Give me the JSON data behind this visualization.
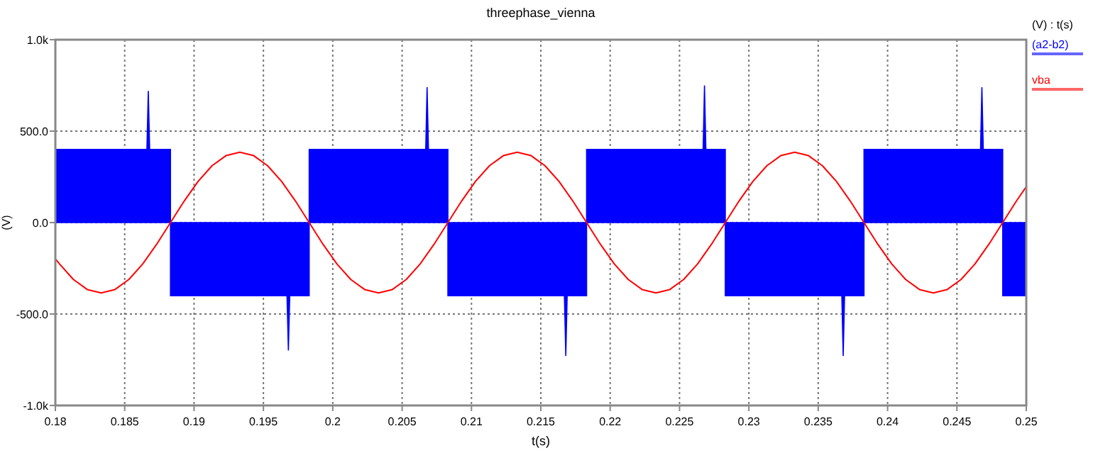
{
  "chart_data": {
    "type": "line",
    "title": "threephase_vienna",
    "xlabel": "t(s)",
    "ylabel": "(V)",
    "legend_title": "(V) : t(s)",
    "legend": "right",
    "grid": true,
    "xlim": [
      0.18,
      0.25
    ],
    "xticks": [
      0.18,
      0.185,
      0.19,
      0.195,
      0.2,
      0.205,
      0.21,
      0.215,
      0.22,
      0.225,
      0.23,
      0.235,
      0.24,
      0.245,
      0.25
    ],
    "ylim": [
      -1000,
      1000
    ],
    "yticks": [
      {
        "value": -1000,
        "label": "-1.0k"
      },
      {
        "value": -500,
        "label": "-500.0"
      },
      {
        "value": 0,
        "label": "0.0"
      },
      {
        "value": 500,
        "label": "500.0"
      },
      {
        "value": 1000,
        "label": "1.0k"
      }
    ],
    "series": [
      {
        "name": "(a2-b2)",
        "type": "area",
        "color": "#0000ff",
        "x": [
          0.18,
          0.1866,
          0.1867,
          0.1868,
          0.1883,
          0.1883,
          0.1967,
          0.1968,
          0.1969,
          0.1983,
          0.1983,
          0.2067,
          0.2068,
          0.2069,
          0.2083,
          0.2083,
          0.2167,
          0.2168,
          0.2169,
          0.2183,
          0.2183,
          0.2267,
          0.2268,
          0.2269,
          0.2283,
          0.2283,
          0.2367,
          0.2368,
          0.2369,
          0.2383,
          0.2383,
          0.2467,
          0.2468,
          0.2469,
          0.2483,
          0.2483,
          0.25
        ],
        "values": [
          400,
          400,
          720,
          400,
          400,
          -400,
          -400,
          -700,
          -400,
          -400,
          400,
          400,
          740,
          400,
          400,
          -400,
          -400,
          -730,
          -400,
          -400,
          400,
          400,
          750,
          400,
          400,
          -400,
          -400,
          -730,
          -400,
          -400,
          400,
          400,
          740,
          400,
          400,
          -400,
          -400
        ]
      },
      {
        "name": "vba",
        "color": "#ff0000",
        "x": [
          0.18,
          0.1803,
          0.1813,
          0.1823,
          0.1833,
          0.1843,
          0.1853,
          0.1863,
          0.1873,
          0.1883,
          0.1893,
          0.1903,
          0.1913,
          0.1923,
          0.1933,
          0.1943,
          0.1953,
          0.1963,
          0.1973,
          0.1983,
          0.1993,
          0.2003,
          0.2013,
          0.2023,
          0.2033,
          0.2043,
          0.2053,
          0.2063,
          0.2073,
          0.2083,
          0.2093,
          0.2103,
          0.2113,
          0.2123,
          0.2133,
          0.2143,
          0.2153,
          0.2163,
          0.2173,
          0.2183,
          0.2193,
          0.2203,
          0.2213,
          0.2223,
          0.2233,
          0.2243,
          0.2253,
          0.2263,
          0.2273,
          0.2283,
          0.2293,
          0.2303,
          0.2313,
          0.2323,
          0.2333,
          0.2343,
          0.2353,
          0.2363,
          0.2373,
          0.2383,
          0.2393,
          0.2403,
          0.2413,
          0.2423,
          0.2433,
          0.2443,
          0.2453,
          0.2463,
          0.2473,
          0.2483,
          0.2493,
          0.25
        ],
        "values": [
          -198,
          -226,
          -311,
          -366,
          -385,
          -366,
          -311,
          -226,
          -119,
          0,
          119,
          226,
          311,
          366,
          385,
          366,
          311,
          226,
          119,
          0,
          -119,
          -226,
          -311,
          -366,
          -385,
          -366,
          -311,
          -226,
          -119,
          0,
          119,
          226,
          311,
          366,
          385,
          366,
          311,
          226,
          119,
          0,
          -119,
          -226,
          -311,
          -366,
          -385,
          -366,
          -311,
          -226,
          -119,
          0,
          119,
          226,
          311,
          366,
          385,
          366,
          311,
          226,
          119,
          0,
          -119,
          -226,
          -311,
          -366,
          -385,
          -366,
          -311,
          -226,
          -119,
          0,
          119,
          196
        ]
      }
    ]
  }
}
